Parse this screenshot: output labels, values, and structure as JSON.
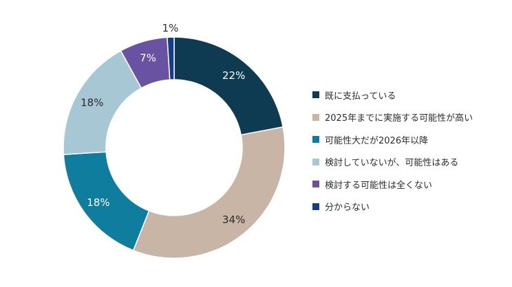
{
  "chart_data": {
    "type": "pie",
    "variant": "donut",
    "start": "12 o'clock",
    "direction": "clockwise",
    "legend_position": "right",
    "categories": [
      "既に支払っている",
      "2025年までに実施する可能性が高い",
      "可能性大だが2026年以降",
      "検討していないが、可能性はある",
      "検討する可能性は全くない",
      "分からない"
    ],
    "values": [
      22,
      34,
      18,
      18,
      7,
      1
    ],
    "labels": [
      "22%",
      "34%",
      "18%",
      "18%",
      "7%",
      "1%"
    ],
    "colors": [
      "#0e3a52",
      "#c8b5a6",
      "#0f7e9e",
      "#a6c7d3",
      "#6a52a2",
      "#153d82"
    ],
    "label_colors": [
      "#ffffff",
      "#2b2b2b",
      "#ffffff",
      "#2b2b2b",
      "#ffffff",
      "#2b2b2b"
    ]
  }
}
